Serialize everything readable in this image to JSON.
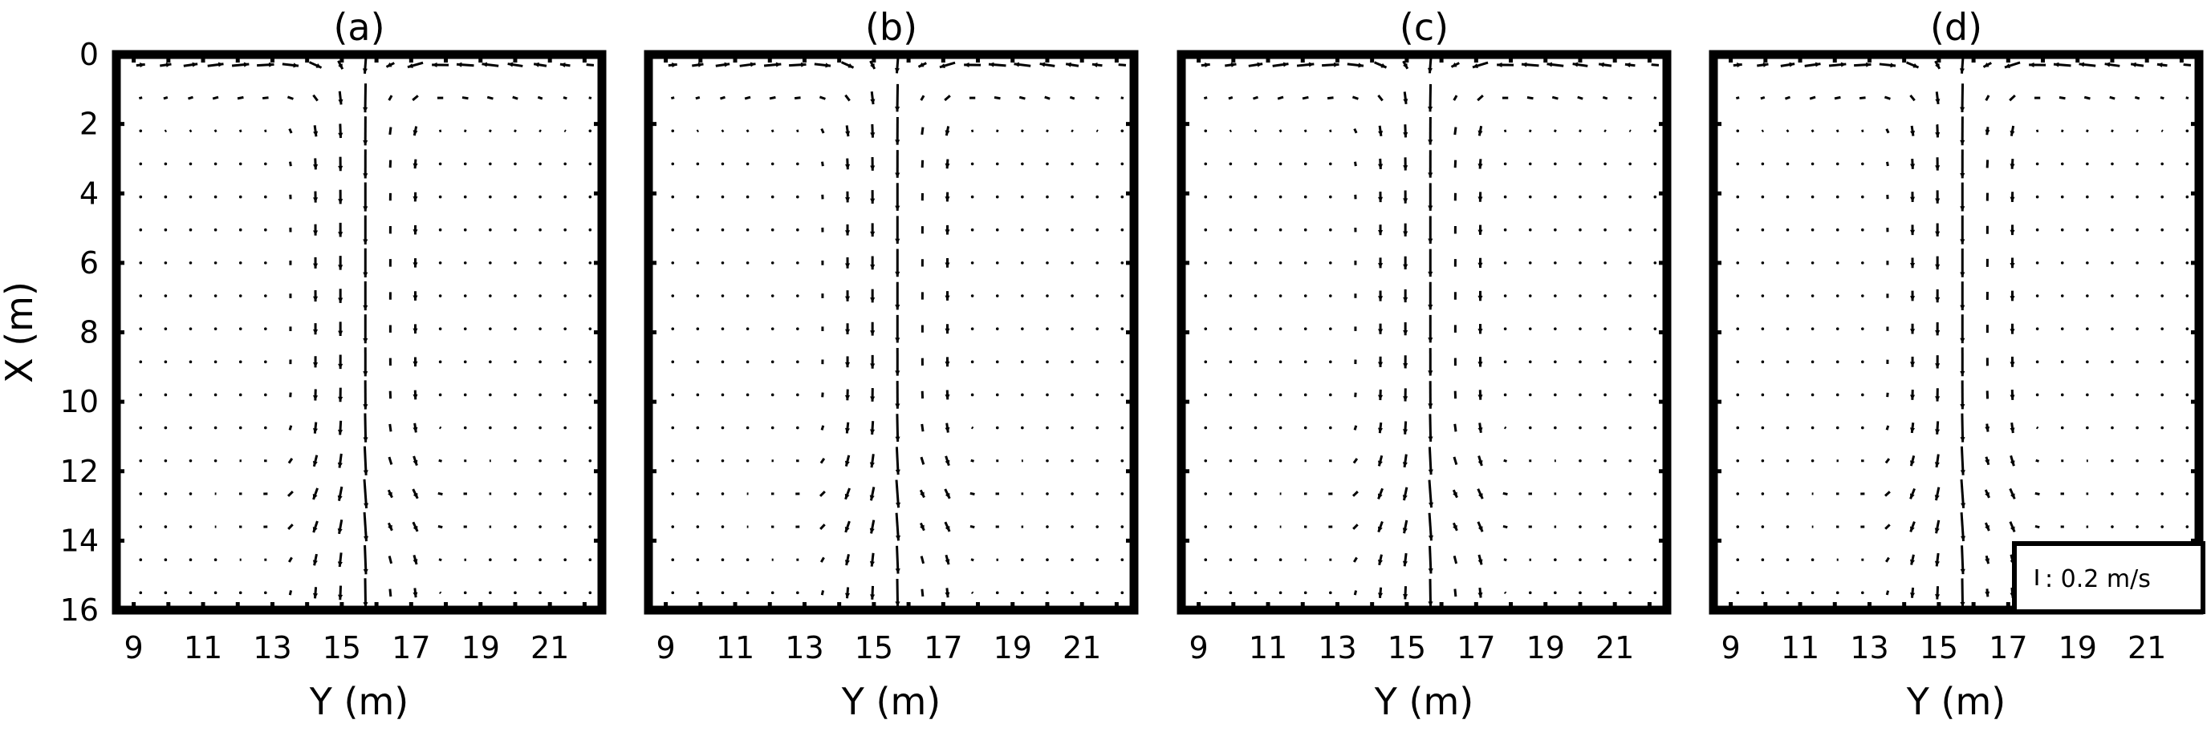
{
  "figure": {
    "panels": [
      {
        "title": "(a)"
      },
      {
        "title": "(b)"
      },
      {
        "title": "(c)"
      },
      {
        "title": "(d)"
      }
    ],
    "legend": {
      "scale_label": ": 0.2 m/s",
      "reference_speed": 0.2
    }
  },
  "chart_data": [
    {
      "type": "quiver",
      "title": "(a)",
      "xlabel": "Y (m)",
      "ylabel": "X (m)",
      "xticks": [
        9,
        11,
        13,
        15,
        17,
        19,
        21
      ],
      "yticks": [
        0,
        2,
        4,
        6,
        8,
        10,
        12,
        14,
        16
      ],
      "xlim": [
        8.5,
        22.5
      ],
      "ylim": [
        16,
        0
      ],
      "flow": "downflow jet at Y=15.5 with two recirculation cells",
      "jet_Y": 15.5,
      "max_speed": 0.2
    },
    {
      "type": "quiver",
      "title": "(b)",
      "xlabel": "Y (m)",
      "ylabel": "",
      "xticks": [
        9,
        11,
        13,
        15,
        17,
        19,
        21
      ],
      "yticks": [],
      "xlim": [
        8.5,
        22.5
      ],
      "ylim": [
        16,
        0
      ],
      "flow": "downflow jet at Y=15.5 with two recirculation cells",
      "jet_Y": 15.5,
      "max_speed": 0.2
    },
    {
      "type": "quiver",
      "title": "(c)",
      "xlabel": "Y (m)",
      "ylabel": "",
      "xticks": [
        9,
        11,
        13,
        15,
        17,
        19,
        21
      ],
      "yticks": [],
      "xlim": [
        8.5,
        22.5
      ],
      "ylim": [
        16,
        0
      ],
      "flow": "downflow jet at Y=15.5 with two recirculation cells",
      "jet_Y": 15.5,
      "max_speed": 0.2
    },
    {
      "type": "quiver",
      "title": "(d)",
      "xlabel": "Y (m)",
      "ylabel": "",
      "xticks": [
        9,
        11,
        13,
        15,
        17,
        19,
        21
      ],
      "yticks": [],
      "xlim": [
        8.5,
        22.5
      ],
      "ylim": [
        16,
        0
      ],
      "flow": "downflow jet at Y=15.5 with two recirculation cells",
      "jet_Y": 15.5,
      "max_speed": 0.2
    }
  ]
}
